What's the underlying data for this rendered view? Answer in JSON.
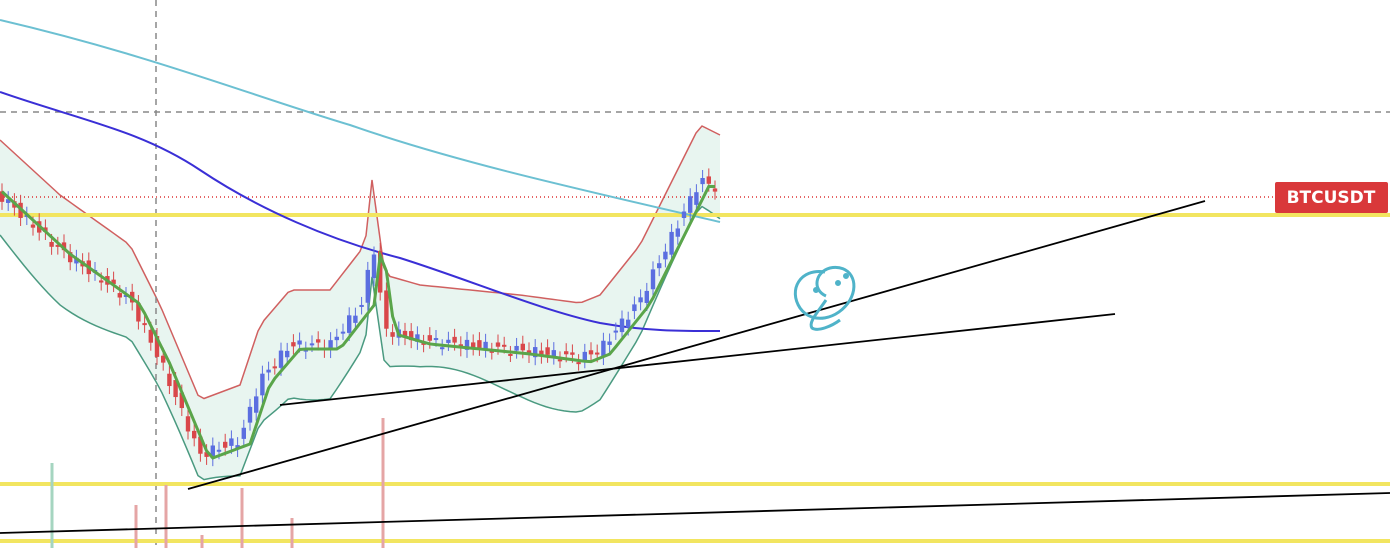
{
  "symbol_label": "BTCUSDT"
}
